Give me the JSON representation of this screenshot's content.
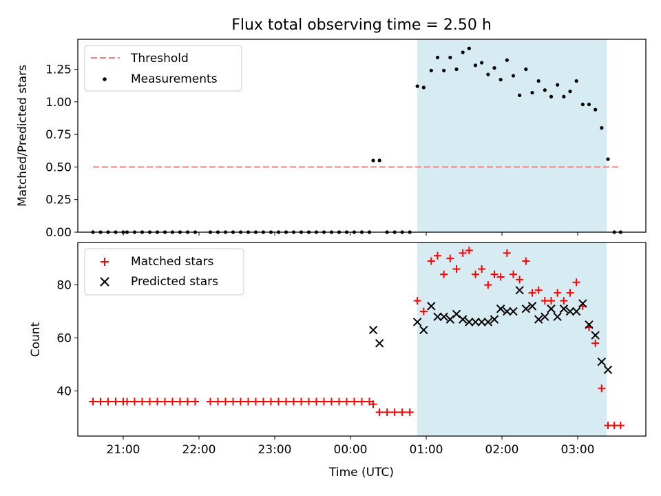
{
  "title": "Flux total observing time = 2.50 h",
  "colors": {
    "threshold": "#ff7f7f",
    "measurement": "#000000",
    "matched": "#ff0000",
    "predicted": "#000000",
    "observing_window": "#add8e6"
  },
  "chart_data": [
    {
      "type": "scatter",
      "ylabel": "Matched/Predicted stars",
      "xlim": [
        "20:24",
        "03:54"
      ],
      "ylim": [
        0,
        1.48
      ],
      "yticks": [
        "0.00",
        "0.25",
        "0.50",
        "0.75",
        "1.00",
        "1.25"
      ],
      "grid": false,
      "legend": {
        "position": "top-left",
        "entries": [
          "Threshold",
          "Measurements"
        ]
      },
      "observing_window": [
        "00:53",
        "03:23"
      ],
      "threshold": {
        "label": "Threshold",
        "y": 0.5,
        "x_range": [
          "20:36",
          "03:33"
        ],
        "style": "dashed"
      },
      "series": [
        {
          "name": "Measurements",
          "marker": "dot",
          "points": [
            [
              "20:36",
              0
            ],
            [
              "20:42",
              0
            ],
            [
              "20:48",
              0
            ],
            [
              "20:54",
              0
            ],
            [
              "21:00",
              0
            ],
            [
              "21:03",
              0
            ],
            [
              "21:09",
              0
            ],
            [
              "21:15",
              0
            ],
            [
              "21:21",
              0
            ],
            [
              "21:27",
              0
            ],
            [
              "21:33",
              0
            ],
            [
              "21:39",
              0
            ],
            [
              "21:45",
              0
            ],
            [
              "21:51",
              0
            ],
            [
              "21:57",
              0
            ],
            [
              "22:09",
              0
            ],
            [
              "22:15",
              0
            ],
            [
              "22:21",
              0
            ],
            [
              "22:27",
              0
            ],
            [
              "22:33",
              0
            ],
            [
              "22:39",
              0
            ],
            [
              "22:45",
              0
            ],
            [
              "22:51",
              0
            ],
            [
              "22:57",
              0
            ],
            [
              "23:03",
              0
            ],
            [
              "23:09",
              0
            ],
            [
              "23:15",
              0
            ],
            [
              "23:21",
              0
            ],
            [
              "23:27",
              0
            ],
            [
              "23:33",
              0
            ],
            [
              "23:39",
              0
            ],
            [
              "23:45",
              0
            ],
            [
              "23:51",
              0
            ],
            [
              "23:57",
              0
            ],
            [
              "00:03",
              0
            ],
            [
              "00:09",
              0
            ],
            [
              "00:15",
              0
            ],
            [
              "00:18",
              0.55
            ],
            [
              "00:23",
              0.55
            ],
            [
              "00:29",
              0
            ],
            [
              "00:35",
              0
            ],
            [
              "00:41",
              0
            ],
            [
              "00:47",
              0
            ],
            [
              "00:53",
              1.12
            ],
            [
              "00:58",
              1.11
            ],
            [
              "01:04",
              1.24
            ],
            [
              "01:09",
              1.34
            ],
            [
              "01:14",
              1.24
            ],
            [
              "01:19",
              1.34
            ],
            [
              "01:24",
              1.25
            ],
            [
              "01:29",
              1.38
            ],
            [
              "01:34",
              1.41
            ],
            [
              "01:39",
              1.28
            ],
            [
              "01:44",
              1.3
            ],
            [
              "01:49",
              1.21
            ],
            [
              "01:54",
              1.26
            ],
            [
              "01:59",
              1.17
            ],
            [
              "02:04",
              1.32
            ],
            [
              "02:09",
              1.2
            ],
            [
              "02:14",
              1.05
            ],
            [
              "02:19",
              1.25
            ],
            [
              "02:24",
              1.07
            ],
            [
              "02:29",
              1.16
            ],
            [
              "02:34",
              1.09
            ],
            [
              "02:39",
              1.04
            ],
            [
              "02:44",
              1.13
            ],
            [
              "02:49",
              1.04
            ],
            [
              "02:54",
              1.08
            ],
            [
              "02:59",
              1.16
            ],
            [
              "03:04",
              0.98
            ],
            [
              "03:09",
              0.98
            ],
            [
              "03:14",
              0.94
            ],
            [
              "03:19",
              0.8
            ],
            [
              "03:24",
              0.56
            ],
            [
              "03:29",
              0
            ],
            [
              "03:34",
              0
            ]
          ]
        }
      ]
    },
    {
      "type": "scatter",
      "xlabel": "Time (UTC)",
      "ylabel": "Count",
      "xlim": [
        "20:24",
        "03:54"
      ],
      "xticks": [
        "21:00",
        "22:00",
        "23:00",
        "00:00",
        "01:00",
        "02:00",
        "03:00"
      ],
      "ylim": [
        23,
        96
      ],
      "yticks": [
        "40",
        "60",
        "80"
      ],
      "grid": false,
      "legend": {
        "position": "top-left",
        "entries": [
          "Matched stars",
          "Predicted stars"
        ]
      },
      "observing_window": [
        "00:53",
        "03:23"
      ],
      "series": [
        {
          "name": "Matched stars",
          "marker": "plus",
          "points": [
            [
              "20:36",
              36
            ],
            [
              "20:42",
              36
            ],
            [
              "20:48",
              36
            ],
            [
              "20:54",
              36
            ],
            [
              "21:00",
              36
            ],
            [
              "21:03",
              36
            ],
            [
              "21:09",
              36
            ],
            [
              "21:15",
              36
            ],
            [
              "21:21",
              36
            ],
            [
              "21:27",
              36
            ],
            [
              "21:33",
              36
            ],
            [
              "21:39",
              36
            ],
            [
              "21:45",
              36
            ],
            [
              "21:51",
              36
            ],
            [
              "21:57",
              36
            ],
            [
              "22:09",
              36
            ],
            [
              "22:15",
              36
            ],
            [
              "22:21",
              36
            ],
            [
              "22:27",
              36
            ],
            [
              "22:33",
              36
            ],
            [
              "22:39",
              36
            ],
            [
              "22:45",
              36
            ],
            [
              "22:51",
              36
            ],
            [
              "22:57",
              36
            ],
            [
              "23:03",
              36
            ],
            [
              "23:09",
              36
            ],
            [
              "23:15",
              36
            ],
            [
              "23:21",
              36
            ],
            [
              "23:27",
              36
            ],
            [
              "23:33",
              36
            ],
            [
              "23:39",
              36
            ],
            [
              "23:45",
              36
            ],
            [
              "23:51",
              36
            ],
            [
              "23:57",
              36
            ],
            [
              "00:03",
              36
            ],
            [
              "00:09",
              36
            ],
            [
              "00:15",
              36
            ],
            [
              "00:18",
              35
            ],
            [
              "00:23",
              32
            ],
            [
              "00:29",
              32
            ],
            [
              "00:35",
              32
            ],
            [
              "00:41",
              32
            ],
            [
              "00:47",
              32
            ],
            [
              "00:53",
              74
            ],
            [
              "00:58",
              70
            ],
            [
              "01:04",
              89
            ],
            [
              "01:09",
              91
            ],
            [
              "01:14",
              84
            ],
            [
              "01:19",
              90
            ],
            [
              "01:24",
              86
            ],
            [
              "01:29",
              92
            ],
            [
              "01:34",
              93
            ],
            [
              "01:39",
              84
            ],
            [
              "01:44",
              86
            ],
            [
              "01:49",
              80
            ],
            [
              "01:54",
              84
            ],
            [
              "01:59",
              83
            ],
            [
              "02:04",
              92
            ],
            [
              "02:09",
              84
            ],
            [
              "02:14",
              82
            ],
            [
              "02:19",
              89
            ],
            [
              "02:24",
              77
            ],
            [
              "02:29",
              78
            ],
            [
              "02:34",
              74
            ],
            [
              "02:39",
              74
            ],
            [
              "02:44",
              77
            ],
            [
              "02:49",
              74
            ],
            [
              "02:54",
              77
            ],
            [
              "02:59",
              81
            ],
            [
              "03:04",
              72
            ],
            [
              "03:09",
              64
            ],
            [
              "03:14",
              58
            ],
            [
              "03:19",
              41
            ],
            [
              "03:24",
              27
            ],
            [
              "03:29",
              27
            ],
            [
              "03:34",
              27
            ]
          ]
        },
        {
          "name": "Predicted stars",
          "marker": "x",
          "points": [
            [
              "00:18",
              63
            ],
            [
              "00:23",
              58
            ],
            [
              "00:53",
              66
            ],
            [
              "00:58",
              63
            ],
            [
              "01:04",
              72
            ],
            [
              "01:09",
              68
            ],
            [
              "01:14",
              68
            ],
            [
              "01:19",
              67
            ],
            [
              "01:24",
              69
            ],
            [
              "01:29",
              67
            ],
            [
              "01:34",
              66
            ],
            [
              "01:39",
              66
            ],
            [
              "01:44",
              66
            ],
            [
              "01:49",
              66
            ],
            [
              "01:54",
              67
            ],
            [
              "01:59",
              71
            ],
            [
              "02:04",
              70
            ],
            [
              "02:09",
              70
            ],
            [
              "02:14",
              78
            ],
            [
              "02:19",
              71
            ],
            [
              "02:24",
              72
            ],
            [
              "02:29",
              67
            ],
            [
              "02:34",
              68
            ],
            [
              "02:39",
              71
            ],
            [
              "02:44",
              68
            ],
            [
              "02:49",
              71
            ],
            [
              "02:54",
              70
            ],
            [
              "02:59",
              70
            ],
            [
              "03:04",
              73
            ],
            [
              "03:09",
              65
            ],
            [
              "03:14",
              61
            ],
            [
              "03:19",
              51
            ],
            [
              "03:24",
              48
            ]
          ]
        }
      ]
    }
  ]
}
